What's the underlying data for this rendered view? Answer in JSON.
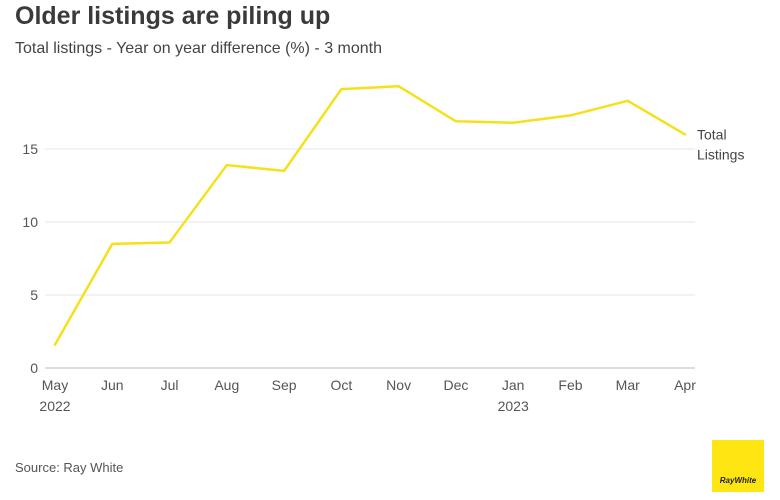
{
  "chart_data": {
    "type": "line",
    "title": "Older listings are piling up",
    "subtitle": "Total listings - Year on year difference (%) - 3 month",
    "source": "Source: Ray White",
    "categories": [
      "May",
      "Jun",
      "Jul",
      "Aug",
      "Sep",
      "Oct",
      "Nov",
      "Dec",
      "Jan",
      "Feb",
      "Mar",
      "Apr"
    ],
    "category_years": [
      "2022",
      "",
      "",
      "",
      "",
      "",
      "",
      "",
      "2023",
      "",
      "",
      ""
    ],
    "yticks": [
      0,
      5,
      10,
      15
    ],
    "ylim": [
      0,
      20
    ],
    "grid": true,
    "series": [
      {
        "name": "Total Listings",
        "label_lines": [
          "Total",
          "Listings"
        ],
        "color": "#f5e11b",
        "values": [
          1.6,
          8.5,
          8.6,
          13.9,
          13.5,
          19.1,
          19.3,
          16.9,
          16.8,
          17.3,
          18.3,
          16.0
        ]
      }
    ]
  },
  "logo": {
    "text": "RayWhite",
    "color": "#ffe512"
  }
}
